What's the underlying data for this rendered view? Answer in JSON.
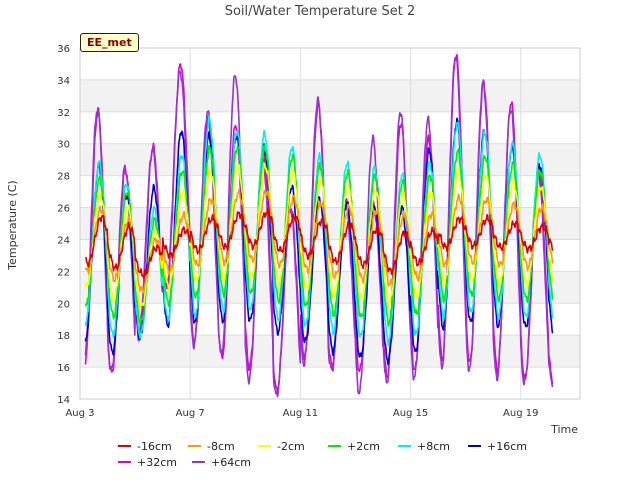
{
  "chart_data": {
    "type": "line",
    "title": "Soil/Water Temperature Set 2",
    "xlabel": "Time",
    "ylabel": "Temperature (C)",
    "station_label": "EE_met",
    "x_ticks": [
      "Aug 3",
      "Aug 7",
      "Aug 11",
      "Aug 15",
      "Aug 19"
    ],
    "y_ticks": [
      14,
      16,
      18,
      20,
      22,
      24,
      26,
      28,
      30,
      32,
      34,
      36
    ],
    "xlim": [
      "2023-08-03",
      "2023-08-21"
    ],
    "ylim": [
      14,
      36
    ],
    "grid": true,
    "legend_position": "bottom",
    "x": [
      "Aug 3",
      "Aug 4",
      "Aug 5",
      "Aug 6",
      "Aug 7",
      "Aug 8",
      "Aug 9",
      "Aug 10",
      "Aug 11",
      "Aug 12",
      "Aug 13",
      "Aug 14",
      "Aug 15",
      "Aug 16",
      "Aug 17",
      "Aug 18",
      "Aug 19",
      "Aug 20"
    ],
    "series": [
      {
        "name": "-16cm",
        "color": "#dd0000",
        "min": [
          22.5,
          22.2,
          21.8,
          23.0,
          23.3,
          23.5,
          23.6,
          23.3,
          23.0,
          22.6,
          22.4,
          22.0,
          22.5,
          23.5,
          23.6,
          23.5,
          23.4,
          23.4
        ],
        "max": [
          25.4,
          24.8,
          23.5,
          24.6,
          25.3,
          25.6,
          25.7,
          25.4,
          25.2,
          24.9,
          24.7,
          24.4,
          24.5,
          25.3,
          25.3,
          25.0,
          24.8,
          24.4
        ]
      },
      {
        "name": "-8cm",
        "color": "#ff9900",
        "min": [
          22.0,
          21.5,
          20.8,
          22.0,
          22.4,
          22.6,
          22.7,
          22.4,
          22.1,
          21.7,
          21.5,
          21.2,
          21.6,
          22.4,
          22.6,
          22.4,
          22.3,
          22.3
        ],
        "max": [
          25.9,
          25.2,
          24.0,
          25.5,
          26.5,
          26.9,
          27.0,
          26.6,
          26.3,
          26.0,
          25.8,
          25.5,
          25.6,
          26.6,
          26.5,
          26.2,
          26.0,
          25.5
        ]
      },
      {
        "name": "-2cm",
        "color": "#ffff00",
        "min": [
          21.0,
          20.3,
          19.8,
          21.0,
          21.4,
          21.6,
          21.7,
          21.3,
          20.9,
          20.5,
          20.3,
          20.0,
          20.4,
          21.3,
          21.5,
          21.3,
          21.2,
          21.2
        ],
        "max": [
          26.8,
          26.0,
          24.6,
          27.0,
          28.3,
          28.6,
          28.6,
          28.2,
          27.7,
          27.3,
          27.1,
          26.8,
          27.0,
          28.2,
          28.0,
          27.6,
          27.3,
          26.8
        ]
      },
      {
        "name": "+2cm",
        "color": "#00ee00",
        "min": [
          19.8,
          19.2,
          18.8,
          20.0,
          20.4,
          20.6,
          20.6,
          20.2,
          19.8,
          19.3,
          19.1,
          18.8,
          19.3,
          20.3,
          20.5,
          20.3,
          20.2,
          20.1
        ],
        "max": [
          27.8,
          27.0,
          25.2,
          28.3,
          29.7,
          29.8,
          29.7,
          29.2,
          28.6,
          28.2,
          28.0,
          27.6,
          28.0,
          29.5,
          29.2,
          28.7,
          28.3,
          27.8
        ]
      },
      {
        "name": "+8cm",
        "color": "#00eeee",
        "min": [
          18.6,
          18.0,
          18.0,
          19.0,
          19.2,
          19.6,
          19.6,
          19.0,
          18.6,
          18.2,
          17.9,
          17.6,
          18.0,
          19.2,
          19.4,
          19.2,
          19.1,
          19.0
        ],
        "max": [
          28.8,
          27.5,
          25.9,
          29.3,
          31.5,
          30.8,
          30.6,
          29.8,
          29.2,
          28.8,
          28.5,
          28.1,
          28.8,
          31.3,
          30.7,
          30.0,
          29.3,
          28.7
        ]
      },
      {
        "name": "+16cm",
        "color": "#0000cc",
        "min": [
          17.4,
          16.9,
          17.8,
          18.6,
          18.8,
          18.9,
          18.9,
          18.2,
          17.6,
          17.0,
          16.6,
          16.4,
          16.9,
          18.5,
          18.8,
          18.6,
          18.5,
          18.3
        ],
        "max": [
          28.6,
          26.8,
          27.2,
          30.8,
          30.5,
          30.5,
          29.8,
          27.3,
          26.6,
          26.3,
          26.1,
          26.0,
          29.6,
          31.4,
          30.8,
          29.8,
          28.7,
          27.6
        ]
      },
      {
        "name": "+32cm",
        "color": "#dd00dd",
        "min": [
          15.6,
          15.6,
          17.8,
          20.9,
          17.6,
          16.6,
          16.0,
          14.5,
          16.6,
          16.1,
          15.8,
          15.4,
          15.8,
          16.5,
          16.3,
          15.8,
          15.3,
          15.2
        ],
        "max": [
          32.0,
          28.4,
          29.8,
          35.0,
          31.6,
          31.2,
          29.5,
          26.0,
          32.4,
          26.6,
          26.2,
          31.3,
          30.3,
          35.6,
          33.8,
          32.6,
          28.5,
          26.7
        ]
      },
      {
        "name": "+64cm",
        "color": "#9933cc",
        "min": [
          15.9,
          15.8,
          18.2,
          21.0,
          17.4,
          16.8,
          15.2,
          14.2,
          16.2,
          15.8,
          14.4,
          15.0,
          15.3,
          16.0,
          15.8,
          15.3,
          15.0,
          15.0
        ],
        "max": [
          32.2,
          28.5,
          29.6,
          34.5,
          32.0,
          34.3,
          29.0,
          25.9,
          32.7,
          26.2,
          30.3,
          32.0,
          31.5,
          35.5,
          33.8,
          32.2,
          28.2,
          26.5
        ]
      }
    ]
  }
}
